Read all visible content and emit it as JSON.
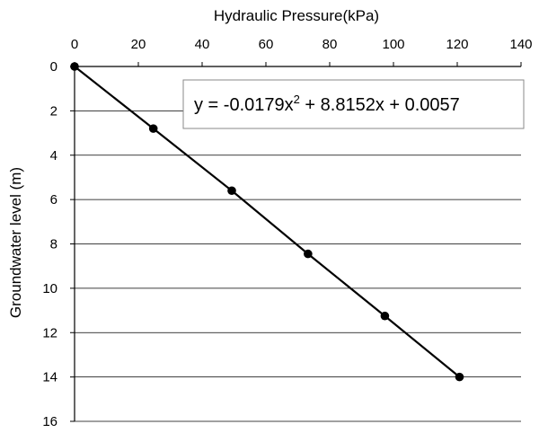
{
  "chart_data": {
    "type": "scatter",
    "x_axis_title": "Hydraulic Pressure(kPa)",
    "y_axis_title": "Groundwater  level (m)",
    "xlim": [
      0,
      140
    ],
    "ylim": [
      0,
      16
    ],
    "x_ticks": [
      "0",
      "20",
      "40",
      "60",
      "80",
      "100",
      "120",
      "140"
    ],
    "y_ticks": [
      "0",
      "2",
      "4",
      "6",
      "8",
      "10",
      "12",
      "14",
      "16"
    ],
    "x_axis_position": "top",
    "y_axis_reversed": true,
    "grid": "horizontal",
    "series": [
      {
        "x": [
          0,
          24.7,
          49.3,
          73.2,
          97.3,
          120.7
        ],
        "y": [
          0,
          2.8,
          5.6,
          8.45,
          11.25,
          14.0
        ],
        "marker": "circle",
        "line": true,
        "color": "#000000"
      }
    ],
    "annotation": {
      "equation_prefix": "y = -0.0179x",
      "equation_power": "2",
      "equation_suffix": " + 8.8152x + 0.0057"
    }
  }
}
